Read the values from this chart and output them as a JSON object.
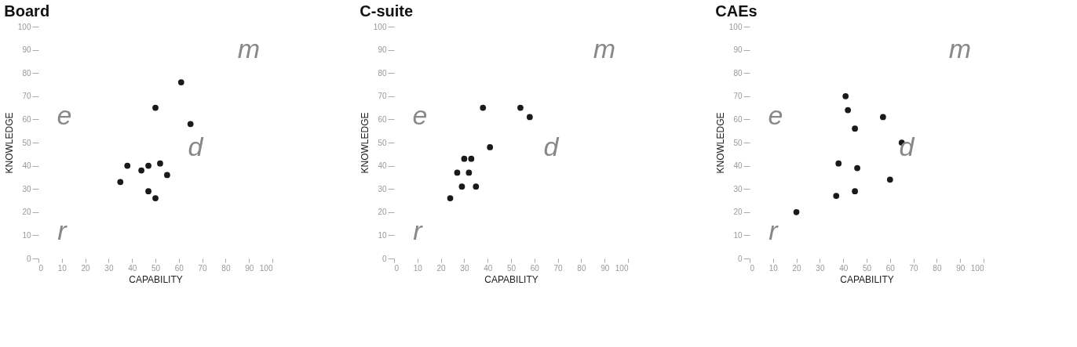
{
  "chart_data": [
    {
      "type": "scatter",
      "title": "Board",
      "xlabel": "CAPABILITY",
      "ylabel": "KNOWLEDGE",
      "marker": "circle",
      "grid": false,
      "xlim": [
        0,
        100
      ],
      "ylim": [
        0,
        100
      ],
      "xticks": [
        0,
        10,
        20,
        30,
        40,
        50,
        60,
        70,
        80,
        90,
        100
      ],
      "yticks": [
        0,
        10,
        20,
        30,
        40,
        50,
        60,
        70,
        80,
        90,
        100
      ],
      "series": [
        {
          "color": "#1a1a1a",
          "x": [
            61,
            50,
            65,
            38,
            44,
            47,
            52,
            35,
            55,
            47,
            50
          ],
          "values": [
            76,
            65,
            58,
            40,
            38,
            40,
            41,
            33,
            36,
            29,
            26
          ]
        }
      ],
      "annotations": [
        "e",
        "d",
        "m",
        "r"
      ]
    },
    {
      "type": "scatter",
      "title": "C-suite",
      "xlabel": "CAPABILITY",
      "ylabel": "KNOWLEDGE",
      "marker": "circle",
      "grid": false,
      "xlim": [
        0,
        100
      ],
      "ylim": [
        0,
        100
      ],
      "xticks": [
        0,
        10,
        20,
        30,
        40,
        50,
        60,
        70,
        80,
        90,
        100
      ],
      "yticks": [
        0,
        10,
        20,
        30,
        40,
        50,
        60,
        70,
        80,
        90,
        100
      ],
      "series": [
        {
          "color": "#1a1a1a",
          "x": [
            38,
            54,
            58,
            41,
            30,
            33,
            27,
            32,
            29,
            35,
            24
          ],
          "values": [
            65,
            65,
            61,
            48,
            43,
            43,
            37,
            37,
            31,
            31,
            26
          ]
        }
      ],
      "annotations": [
        "e",
        "d",
        "m",
        "r"
      ]
    },
    {
      "type": "scatter",
      "title": "CAEs",
      "xlabel": "CAPABILITY",
      "ylabel": "KNOWLEDGE",
      "marker": "circle",
      "grid": false,
      "xlim": [
        0,
        100
      ],
      "ylim": [
        0,
        100
      ],
      "xticks": [
        0,
        10,
        20,
        30,
        40,
        50,
        60,
        70,
        80,
        90,
        100
      ],
      "yticks": [
        0,
        10,
        20,
        30,
        40,
        50,
        60,
        70,
        80,
        90,
        100
      ],
      "series": [
        {
          "color": "#1a1a1a",
          "x": [
            41,
            42,
            45,
            57,
            65,
            38,
            46,
            60,
            37,
            45,
            20
          ],
          "values": [
            70,
            64,
            56,
            61,
            50,
            41,
            39,
            34,
            27,
            29,
            20
          ]
        }
      ],
      "annotations": [
        "e",
        "d",
        "m",
        "r"
      ]
    }
  ]
}
